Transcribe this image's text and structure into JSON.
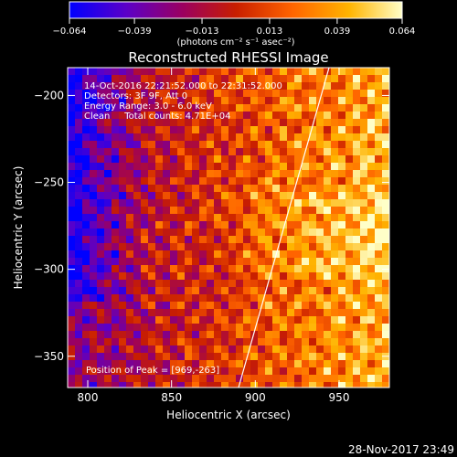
{
  "colorbar": {
    "min": -0.064,
    "max": 0.064,
    "ticks": [
      -0.064,
      -0.039,
      -0.013,
      0.013,
      0.039,
      0.064
    ],
    "tick_labels": [
      "−0.064",
      "−0.039",
      "−0.013",
      "0.013",
      "0.039",
      "0.064"
    ],
    "unit_label": "(photons cm⁻² s⁻¹ asec⁻²)",
    "colormap": [
      "#0000ff",
      "#5b00c8",
      "#9b0060",
      "#c81e00",
      "#ff6400",
      "#ffb400",
      "#ffffc8"
    ]
  },
  "plot": {
    "title": "Reconstructed RHESSI Image",
    "info_lines": [
      "14-Oct-2016 22:21:52.000 to 22:31:52.000",
      "Detectors: 3F 9F, Att 0",
      "Energy Range: 3.0 - 6.0 keV",
      "Clean     Total counts: 4.71E+04"
    ],
    "peak_label": "Position of Peak = [969,-263]",
    "x_label": "Heliocentric X (arcsec)",
    "y_label": "Heliocentric Y (arcsec)",
    "xlim": [
      788,
      980
    ],
    "ylim": [
      -368,
      -184
    ],
    "x_ticks": [
      800,
      850,
      900,
      950
    ],
    "x_tick_labels": [
      "800",
      "850",
      "900",
      "950"
    ],
    "y_ticks": [
      -200,
      -250,
      -300,
      -350
    ],
    "y_tick_labels": [
      "−200",
      "−250",
      "−300",
      "−350"
    ],
    "limb_line": [
      [
        890,
        -368
      ],
      [
        944,
        -184
      ]
    ]
  },
  "footer": {
    "timestamp": "28-Nov-2017 23:49"
  }
}
